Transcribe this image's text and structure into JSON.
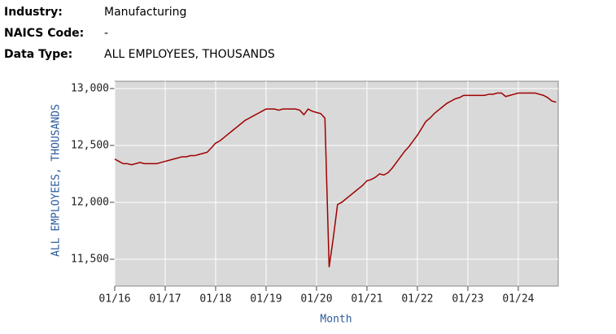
{
  "header": {
    "rows": [
      {
        "label": "Industry:",
        "value": "Manufacturing"
      },
      {
        "label": "NAICS Code:",
        "value": "-"
      },
      {
        "label": "Data Type:",
        "value": "ALL EMPLOYEES, THOUSANDS"
      }
    ]
  },
  "chart_data": {
    "type": "line",
    "y_label": "ALL EMPLOYEES, THOUSANDS",
    "x_label": "Month",
    "color": "#a00000",
    "grid": true,
    "ylim": [
      11264,
      13064
    ],
    "yticks": [
      {
        "value": 11500,
        "label": "11,500"
      },
      {
        "value": 12000,
        "label": "12,000"
      },
      {
        "value": 12500,
        "label": "12,500"
      },
      {
        "value": 13000,
        "label": "13,000"
      }
    ],
    "xticks": [
      "01/16",
      "01/17",
      "01/18",
      "01/19",
      "01/20",
      "01/21",
      "01/22",
      "01/23",
      "01/24"
    ],
    "x": [
      "01/16",
      "02/16",
      "03/16",
      "04/16",
      "05/16",
      "06/16",
      "07/16",
      "08/16",
      "09/16",
      "10/16",
      "11/16",
      "12/16",
      "01/17",
      "02/17",
      "03/17",
      "04/17",
      "05/17",
      "06/17",
      "07/17",
      "08/17",
      "09/17",
      "10/17",
      "11/17",
      "12/17",
      "01/18",
      "02/18",
      "03/18",
      "04/18",
      "05/18",
      "06/18",
      "07/18",
      "08/18",
      "09/18",
      "10/18",
      "11/18",
      "12/18",
      "01/19",
      "02/19",
      "03/19",
      "04/19",
      "05/19",
      "06/19",
      "07/19",
      "08/19",
      "09/19",
      "10/19",
      "11/19",
      "12/19",
      "01/20",
      "02/20",
      "03/20",
      "04/20",
      "05/20",
      "06/20",
      "07/20",
      "08/20",
      "09/20",
      "10/20",
      "11/20",
      "12/20",
      "01/21",
      "02/21",
      "03/21",
      "04/21",
      "05/21",
      "06/21",
      "07/21",
      "08/21",
      "09/21",
      "10/21",
      "11/21",
      "12/21",
      "01/22",
      "02/22",
      "03/22",
      "04/22",
      "05/22",
      "06/22",
      "07/22",
      "08/22",
      "09/22",
      "10/22",
      "11/22",
      "12/22",
      "01/23",
      "02/23",
      "03/23",
      "04/23",
      "05/23",
      "06/23",
      "07/23",
      "08/23",
      "09/23",
      "10/23",
      "11/23",
      "12/23",
      "01/24",
      "02/24",
      "03/24",
      "04/24",
      "05/24",
      "06/24",
      "07/24",
      "08/24",
      "09/24",
      "10/24"
    ],
    "values": [
      12380,
      12360,
      12340,
      12340,
      12330,
      12340,
      12350,
      12340,
      12340,
      12340,
      12340,
      12350,
      12360,
      12370,
      12380,
      12390,
      12400,
      12400,
      12410,
      12410,
      12420,
      12430,
      12440,
      12480,
      12520,
      12540,
      12570,
      12600,
      12630,
      12660,
      12690,
      12720,
      12740,
      12760,
      12780,
      12800,
      12820,
      12820,
      12820,
      12810,
      12820,
      12820,
      12820,
      12820,
      12810,
      12770,
      12820,
      12800,
      12790,
      12780,
      12740,
      11430,
      11690,
      11980,
      12000,
      12030,
      12060,
      12090,
      12120,
      12150,
      12190,
      12200,
      12220,
      12250,
      12240,
      12260,
      12300,
      12350,
      12400,
      12450,
      12490,
      12540,
      12590,
      12650,
      12710,
      12740,
      12780,
      12810,
      12840,
      12870,
      12890,
      12910,
      12920,
      12940,
      12940,
      12940,
      12940,
      12940,
      12940,
      12950,
      12950,
      12960,
      12960,
      12930,
      12940,
      12950,
      12960,
      12960,
      12960,
      12960,
      12960,
      12950,
      12940,
      12920,
      12890,
      12880
    ]
  }
}
